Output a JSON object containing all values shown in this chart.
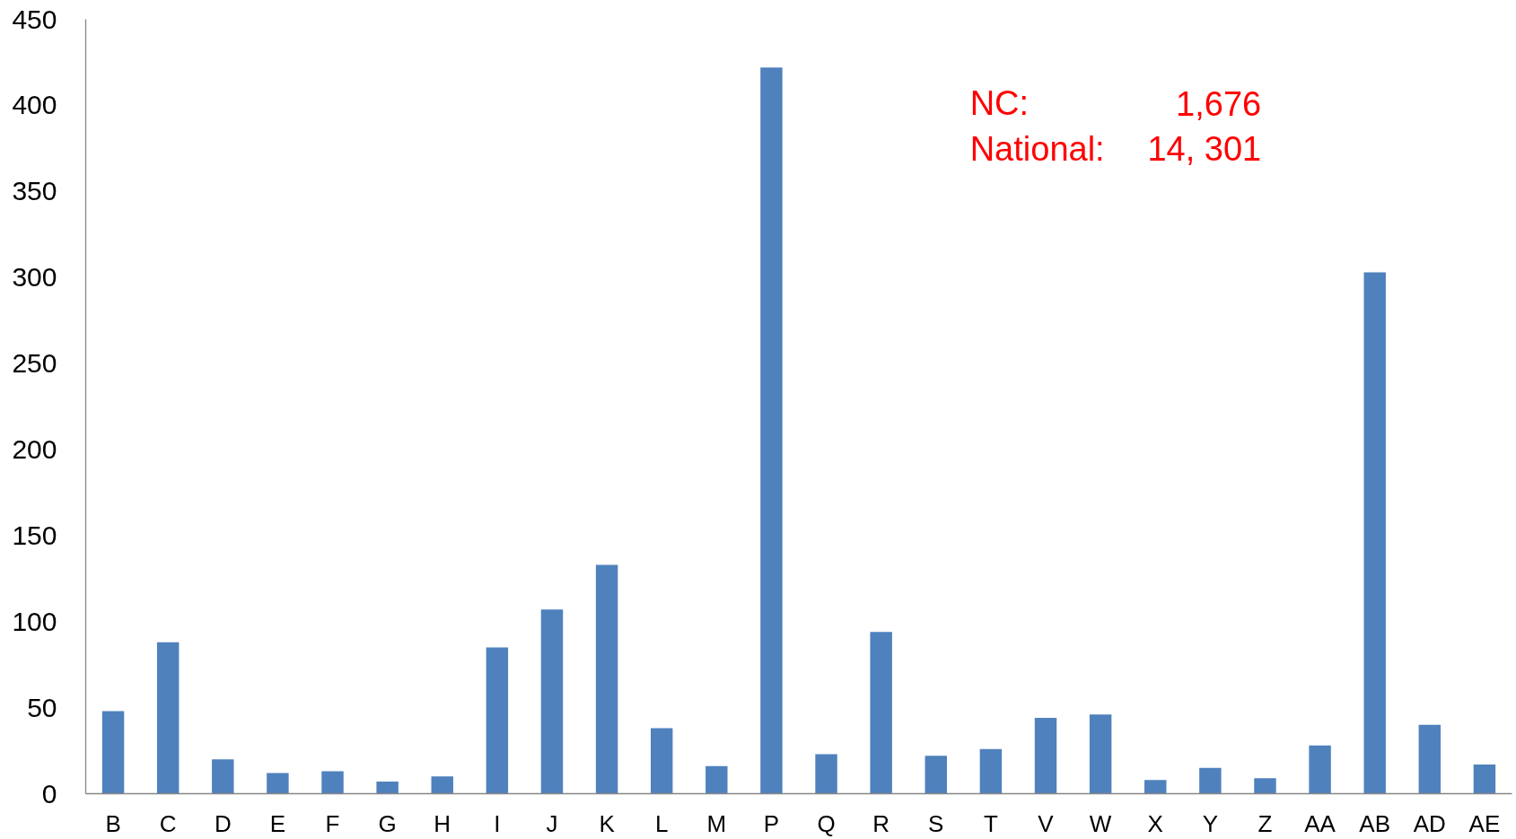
{
  "chart_data": {
    "type": "bar",
    "categories": [
      "B",
      "C",
      "D",
      "E",
      "F",
      "G",
      "H",
      "I",
      "J",
      "K",
      "L",
      "M",
      "P",
      "Q",
      "R",
      "S",
      "T",
      "V",
      "W",
      "X",
      "Y",
      "Z",
      "AA",
      "AB",
      "AD",
      "AE"
    ],
    "values": [
      48,
      88,
      20,
      12,
      13,
      7,
      10,
      85,
      107,
      133,
      38,
      16,
      422,
      23,
      94,
      22,
      26,
      44,
      46,
      8,
      15,
      9,
      28,
      303,
      40,
      17
    ],
    "color": "#4f81bd",
    "ylim": [
      0,
      450
    ],
    "yticks": [
      0,
      50,
      100,
      150,
      200,
      250,
      300,
      350,
      400,
      450
    ],
    "annotations": [
      "NC:",
      "1,676",
      "National:",
      "14, 301"
    ]
  }
}
